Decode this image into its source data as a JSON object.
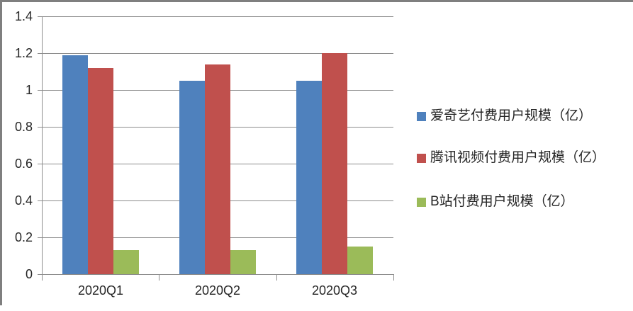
{
  "chart_data": {
    "type": "bar",
    "title": "",
    "categories": [
      "2020Q1",
      "2020Q2",
      "2020Q3"
    ],
    "series": [
      {
        "name": "爱奇艺付费用户规模（亿）",
        "color": "#4F81BD",
        "values": [
          1.19,
          1.05,
          1.05
        ]
      },
      {
        "name": "腾讯视频付费用户规模（亿）",
        "color": "#C0504D",
        "values": [
          1.12,
          1.14,
          1.2
        ]
      },
      {
        "name": "B站付费用户规模（亿）",
        "color": "#9BBB59",
        "values": [
          0.13,
          0.13,
          0.15
        ]
      }
    ],
    "xlabel": "",
    "ylabel": "",
    "ylim": [
      0,
      1.4
    ],
    "ytick_step": 0.2,
    "ytick_labels": [
      "0",
      "0.2",
      "0.4",
      "0.6",
      "0.8",
      "1",
      "1.2",
      "1.4"
    ],
    "grid": true,
    "legend_position": "right"
  },
  "colors": {
    "background": "#FFFFFF",
    "gridline": "#8C8C8C",
    "axis": "#8C8C8C",
    "frame_border": "#7F7F7F",
    "text": "#262626"
  }
}
